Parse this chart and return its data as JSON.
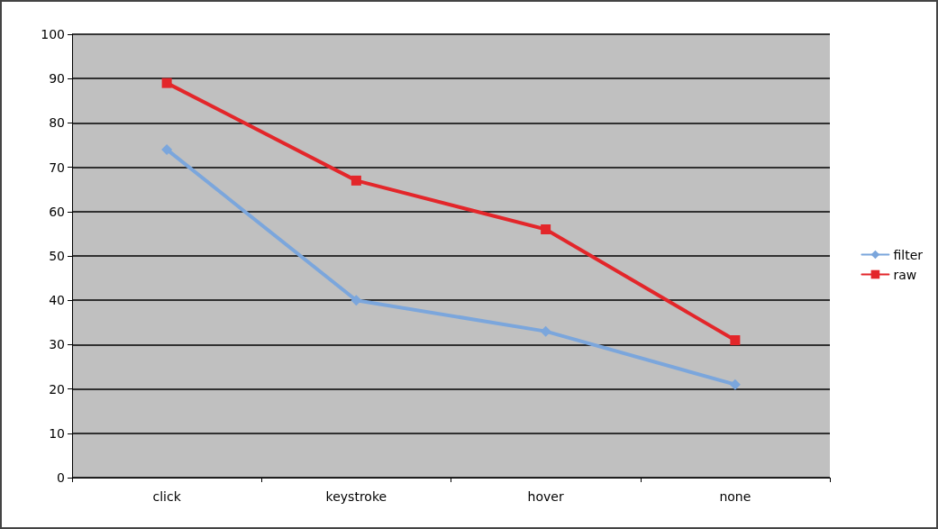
{
  "chart_data": {
    "type": "line",
    "categories": [
      "click",
      "keystroke",
      "hover",
      "none"
    ],
    "series": [
      {
        "name": "filter",
        "color": "#7ba6dc",
        "marker": "diamond",
        "values": [
          74,
          40,
          33,
          21
        ]
      },
      {
        "name": "raw",
        "color": "#e3262a",
        "marker": "square",
        "values": [
          89,
          67,
          56,
          31
        ]
      }
    ],
    "ylim": [
      0,
      100
    ],
    "yticks": [
      0,
      10,
      20,
      30,
      40,
      50,
      60,
      70,
      80,
      90,
      100
    ],
    "grid": "y",
    "legend": "right",
    "line_style": "solid"
  }
}
